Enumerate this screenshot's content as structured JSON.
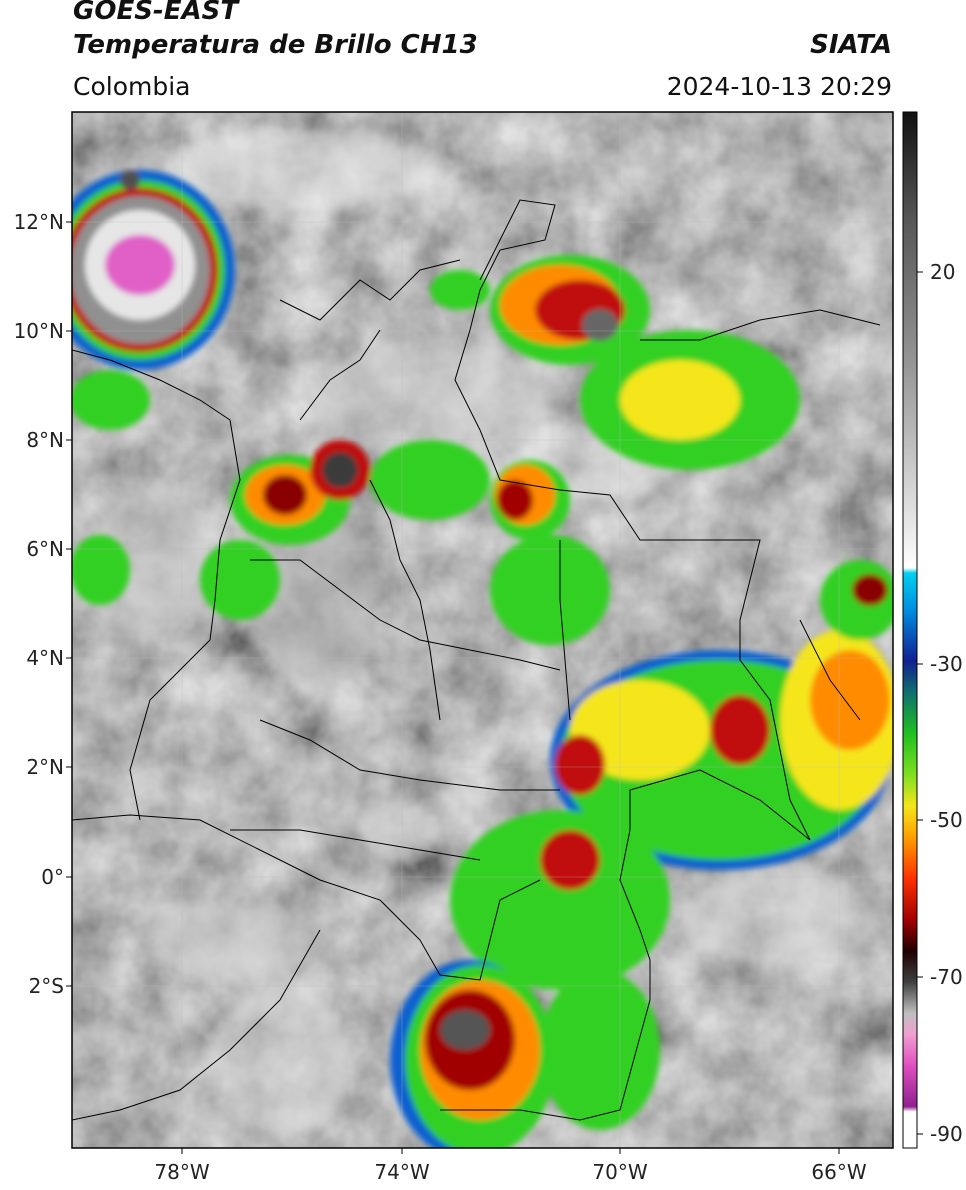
{
  "header": {
    "satellite": "GOES-EAST",
    "product": "Temperatura de Brillo CH13",
    "region": "Colombia",
    "organization": "SIATA",
    "datetime": "2024-10-13 20:29"
  },
  "axes": {
    "lat_labels": [
      "12°N",
      "10°N",
      "8°N",
      "6°N",
      "4°N",
      "2°N",
      "0°",
      "2°S"
    ],
    "lon_labels": [
      "78°W",
      "74°W",
      "70°W",
      "66°W"
    ]
  },
  "colorbar": {
    "tick_labels": [
      "20",
      "-30",
      "-50",
      "-70",
      "-90"
    ],
    "unit_range_c": [
      -92,
      35
    ]
  },
  "colors": {
    "cold_core": "#e060c8",
    "deep_red": "#c01010",
    "orange": "#ff8c00",
    "yellow": "#f5e61a",
    "green": "#30d020",
    "blue": "#1060d0",
    "cyan": "#20c8e8",
    "clear_sky_gray": "#707070"
  }
}
